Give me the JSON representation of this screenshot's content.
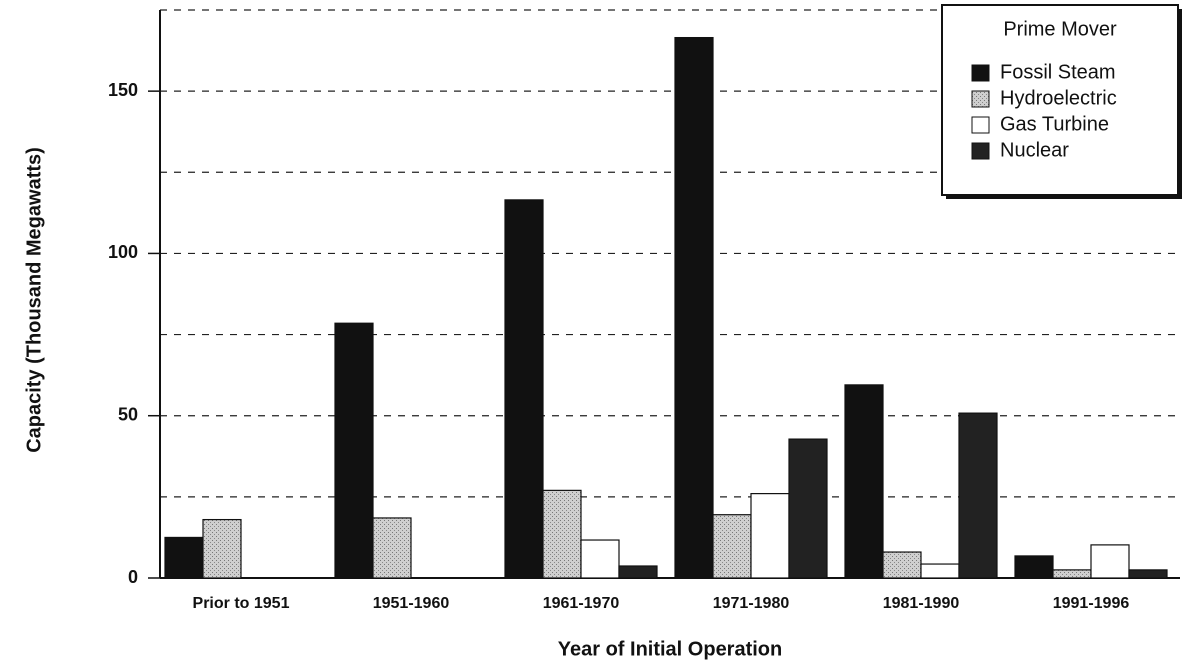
{
  "chart_data": {
    "type": "bar",
    "categories": [
      "Prior to 1951",
      "1951-1960",
      "1961-1970",
      "1971-1980",
      "1981-1990",
      "1991-1996"
    ],
    "series": [
      {
        "name": "Fossil Steam",
        "color": "#111111",
        "values": [
          12.5,
          78.5,
          116.5,
          166.5,
          59.5,
          6.8
        ]
      },
      {
        "name": "Hydroelectric",
        "color": "#bdbdbd",
        "values": [
          18,
          18.5,
          27,
          19.5,
          8,
          2.5
        ]
      },
      {
        "name": "Gas Turbine",
        "color": "#ffffff",
        "values": [
          0,
          0,
          11.7,
          26,
          4.3,
          10.2
        ]
      },
      {
        "name": "Nuclear",
        "color": "#222222",
        "values": [
          0,
          0,
          3.7,
          42.8,
          50.8,
          2.5
        ]
      }
    ],
    "ylabel": "Capacity  (Thousand Megawatts)",
    "xlabel": "Year of Initial Operation",
    "legend_title": "Prime Mover",
    "legend": "top-right",
    "ylim": [
      0,
      175
    ],
    "yticks": [
      0,
      50,
      100,
      150
    ],
    "minor_yticks": [
      25,
      75,
      125,
      175
    ],
    "grid": true
  }
}
